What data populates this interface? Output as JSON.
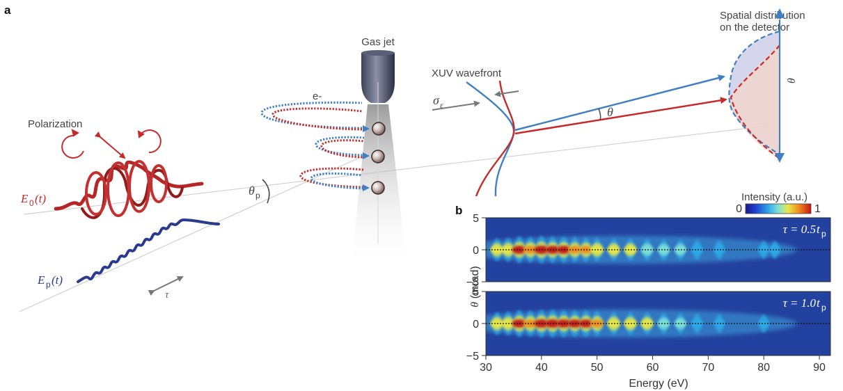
{
  "panel_a": {
    "letter": "a",
    "labels": {
      "polarization": "Polarization",
      "gas_jet": "Gas jet",
      "electron": "e-",
      "xuv_wavefront": "XUV wavefront",
      "spatial_line1": "Spatial distribution",
      "spatial_line2": "on the detector",
      "E0_main": "E",
      "E0_sub": "0",
      "E0_arg": "(t)",
      "Ep_main": "E",
      "Ep_sub": "p",
      "Ep_arg": "(t)",
      "tau": "τ",
      "theta_p_main": "θ",
      "theta_p_sub": "p",
      "sigma_main": "σ",
      "sigma_sub": "ε",
      "theta": "θ",
      "theta_det": "θ"
    },
    "colors": {
      "red": "#c62b2b",
      "blue": "#3f7fc2",
      "navy": "#2b3a8f",
      "grey": "#777777"
    }
  },
  "panel_b": {
    "letter": "b",
    "colorbar": {
      "title": "Intensity (a.u.)",
      "min_label": "0",
      "max_label": "1"
    },
    "subplots": [
      {
        "tau_label_main": "τ = 0.5",
        "tau_label_t": "t",
        "tau_label_sub": "p"
      },
      {
        "tau_label_main": "τ = 1.0",
        "tau_label_t": "t",
        "tau_label_sub": "p"
      }
    ],
    "ylabel_main": "θ",
    "ylabel_unit": " (mrad)",
    "xlabel": "Energy (eV)"
  },
  "chart_data": {
    "type": "heatmap",
    "x_label": "Energy (eV)",
    "y_label": "θ (mrad)",
    "x_ticks": [
      30,
      40,
      50,
      60,
      70,
      80,
      90
    ],
    "xlim": [
      30,
      92
    ],
    "y_ticks": [
      5,
      0,
      -5
    ],
    "ylim": [
      -5,
      5
    ],
    "colorbar": {
      "label": "Intensity (a.u.)",
      "range": [
        0,
        1
      ]
    },
    "subplots": [
      {
        "label": "τ = 0.5tp",
        "harmonic_energies": [
          32,
          34,
          36,
          38,
          40,
          42,
          44,
          46,
          48,
          50,
          53,
          56,
          59,
          62,
          65,
          68,
          72,
          80,
          82
        ],
        "peak_intensity": [
          0.6,
          0.65,
          0.9,
          0.8,
          0.95,
          0.85,
          0.85,
          0.75,
          0.7,
          0.65,
          0.55,
          0.55,
          0.5,
          0.45,
          0.4,
          0.35,
          0.3,
          0.2,
          0.2
        ]
      },
      {
        "label": "τ = 1.0tp",
        "harmonic_energies": [
          32,
          34,
          36,
          38,
          40,
          42,
          44,
          46,
          48,
          50,
          53,
          56,
          59,
          62,
          65,
          68,
          72,
          80
        ],
        "peak_intensity": [
          0.6,
          0.65,
          0.9,
          0.8,
          0.95,
          0.95,
          0.9,
          0.85,
          0.85,
          0.75,
          0.65,
          0.6,
          0.55,
          0.45,
          0.4,
          0.35,
          0.25,
          0.2
        ]
      }
    ]
  }
}
